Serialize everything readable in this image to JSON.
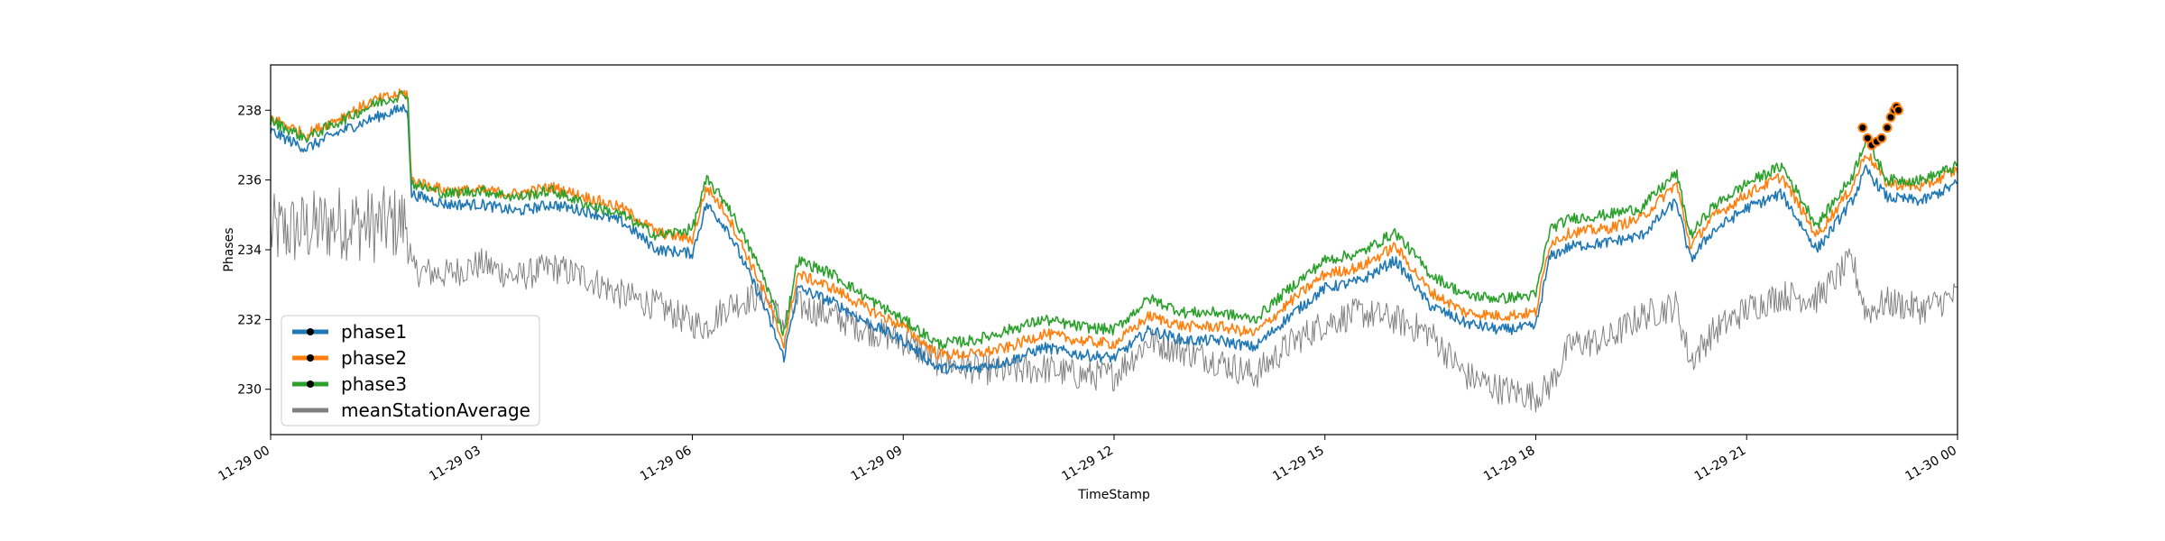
{
  "chart_data": {
    "type": "line",
    "title": "",
    "xlabel": "TimeStamp",
    "ylabel": "Phases",
    "xlim": [
      "11-29 00",
      "11-30 00"
    ],
    "ylim": [
      228.7,
      239.3
    ],
    "x_ticks": [
      "11-29 00",
      "11-29 03",
      "11-29 06",
      "11-29 09",
      "11-29 12",
      "11-29 15",
      "11-29 18",
      "11-29 21",
      "11-30 00"
    ],
    "x_tick_hours": [
      0,
      3,
      6,
      9,
      12,
      15,
      18,
      21,
      24
    ],
    "y_ticks": [
      230,
      232,
      234,
      236,
      238
    ],
    "grid": false,
    "legend": {
      "position": "lower-left"
    },
    "x_hours": [
      0,
      0.5,
      1,
      1.5,
      1.95,
      2.0,
      2.5,
      3,
      3.5,
      4,
      4.5,
      5,
      5.5,
      6,
      6.2,
      6.5,
      7,
      7.3,
      7.5,
      8,
      8.5,
      9,
      9.5,
      10,
      10.5,
      11,
      11.5,
      12,
      12.5,
      13,
      13.5,
      14,
      14.5,
      15,
      15.5,
      16,
      16.5,
      17,
      17.5,
      18,
      18.2,
      18.5,
      19,
      19.5,
      20,
      20.2,
      20.5,
      21,
      21.5,
      22,
      22.5,
      22.7,
      23,
      23.5,
      24
    ],
    "series": [
      {
        "name": "phase1",
        "color": "#1f77b4",
        "values": [
          237.4,
          236.9,
          237.4,
          237.8,
          238.1,
          235.6,
          235.3,
          235.3,
          235.1,
          235.3,
          235.1,
          234.8,
          234.0,
          233.9,
          235.3,
          234.6,
          232.5,
          230.9,
          232.9,
          232.5,
          231.9,
          231.4,
          230.6,
          230.6,
          230.8,
          231.2,
          231.0,
          230.9,
          231.7,
          231.4,
          231.4,
          231.2,
          232.1,
          232.9,
          233.1,
          233.7,
          232.4,
          231.9,
          231.7,
          231.8,
          233.8,
          234.1,
          234.2,
          234.4,
          235.4,
          233.7,
          234.5,
          235.2,
          235.6,
          234.0,
          235.4,
          236.3,
          235.5,
          235.4,
          235.9
        ]
      },
      {
        "name": "phase2",
        "color": "#ff7f0e",
        "values": [
          237.8,
          237.3,
          237.8,
          238.3,
          238.5,
          236.0,
          235.7,
          235.7,
          235.6,
          235.8,
          235.5,
          235.2,
          234.5,
          234.3,
          235.8,
          235.0,
          232.9,
          231.3,
          233.3,
          232.9,
          232.3,
          231.8,
          231.0,
          231.0,
          231.2,
          231.6,
          231.4,
          231.3,
          232.1,
          231.8,
          231.8,
          231.6,
          232.5,
          233.3,
          233.5,
          234.1,
          232.8,
          232.2,
          232.1,
          232.2,
          234.2,
          234.5,
          234.6,
          234.9,
          235.9,
          234.1,
          234.9,
          235.6,
          236.1,
          234.4,
          235.8,
          236.8,
          235.9,
          235.8,
          236.3
        ]
      },
      {
        "name": "phase3",
        "color": "#2ca02c",
        "values": [
          237.7,
          237.2,
          237.7,
          238.2,
          238.5,
          235.9,
          235.6,
          235.7,
          235.5,
          235.7,
          235.3,
          235.0,
          234.4,
          234.6,
          236.0,
          235.3,
          233.3,
          231.6,
          233.7,
          233.3,
          232.6,
          232.0,
          231.3,
          231.4,
          231.7,
          232.0,
          231.8,
          231.7,
          232.6,
          232.2,
          232.2,
          232.0,
          232.9,
          233.7,
          233.9,
          234.5,
          233.3,
          232.7,
          232.6,
          232.7,
          234.6,
          234.9,
          235.0,
          235.2,
          236.2,
          234.4,
          235.2,
          235.9,
          236.4,
          234.7,
          236.1,
          237.2,
          236.0,
          236.0,
          236.4
        ]
      },
      {
        "name": "meanStationAverage",
        "color": "#808080",
        "values": [
          234.5,
          234.6,
          234.8,
          234.7,
          234.8,
          233.4,
          233.3,
          233.6,
          233.2,
          233.5,
          233.2,
          232.7,
          232.4,
          231.9,
          231.8,
          232.4,
          232.7,
          231.9,
          232.4,
          232.1,
          231.7,
          231.4,
          230.8,
          230.6,
          230.5,
          230.6,
          230.4,
          230.4,
          231.4,
          231.1,
          230.8,
          230.4,
          231.3,
          231.9,
          232.2,
          232.0,
          231.6,
          230.4,
          230.0,
          229.8,
          230.1,
          231.3,
          231.4,
          232.1,
          232.4,
          230.8,
          231.6,
          232.3,
          232.7,
          232.6,
          233.7,
          232.2,
          232.5,
          232.3,
          232.7
        ]
      }
    ],
    "markers": {
      "x_hours": [
        22.65,
        22.72,
        22.78,
        22.85,
        22.92,
        23.0,
        23.05,
        23.1,
        23.13,
        23.16
      ],
      "values": [
        237.5,
        237.2,
        237.0,
        237.1,
        237.2,
        237.5,
        237.8,
        238.0,
        238.1,
        238.0
      ]
    }
  }
}
